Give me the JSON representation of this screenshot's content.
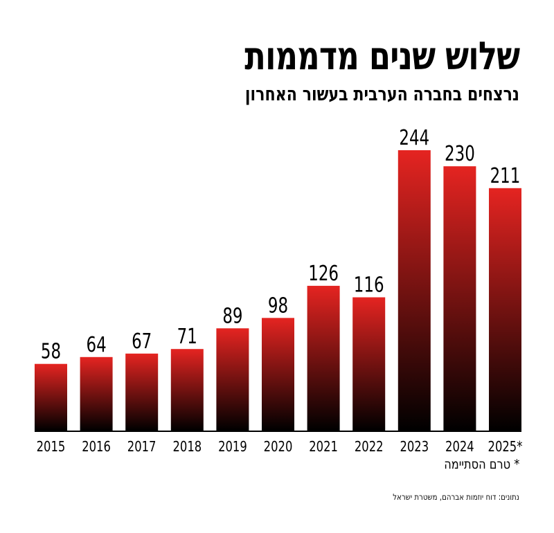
{
  "header": {
    "title": "שלוש שנים מדממות",
    "subtitle": "נרצחים בחברה הערבית בעשור האחרון"
  },
  "footnote": "* טרם הסתיימה",
  "source": "נתונים: דוח יוזמות אברהם, משטרת ישראל",
  "colors": {
    "bar_top": "#e52421",
    "bar_bottom": "#000000",
    "axis": "#000000"
  },
  "chart_data": {
    "type": "bar",
    "categories": [
      "2015",
      "2016",
      "2017",
      "2018",
      "2019",
      "2020",
      "2021",
      "2022",
      "2023",
      "2024",
      "2025*"
    ],
    "values": [
      58,
      64,
      67,
      71,
      89,
      98,
      126,
      116,
      244,
      230,
      211
    ],
    "title": "שלוש שנים מדממות",
    "subtitle": "נרצחים בחברה הערבית בעשור האחרון",
    "xlabel": "",
    "ylabel": "",
    "ylim": [
      0,
      244
    ],
    "grid": false,
    "legend": "none"
  }
}
